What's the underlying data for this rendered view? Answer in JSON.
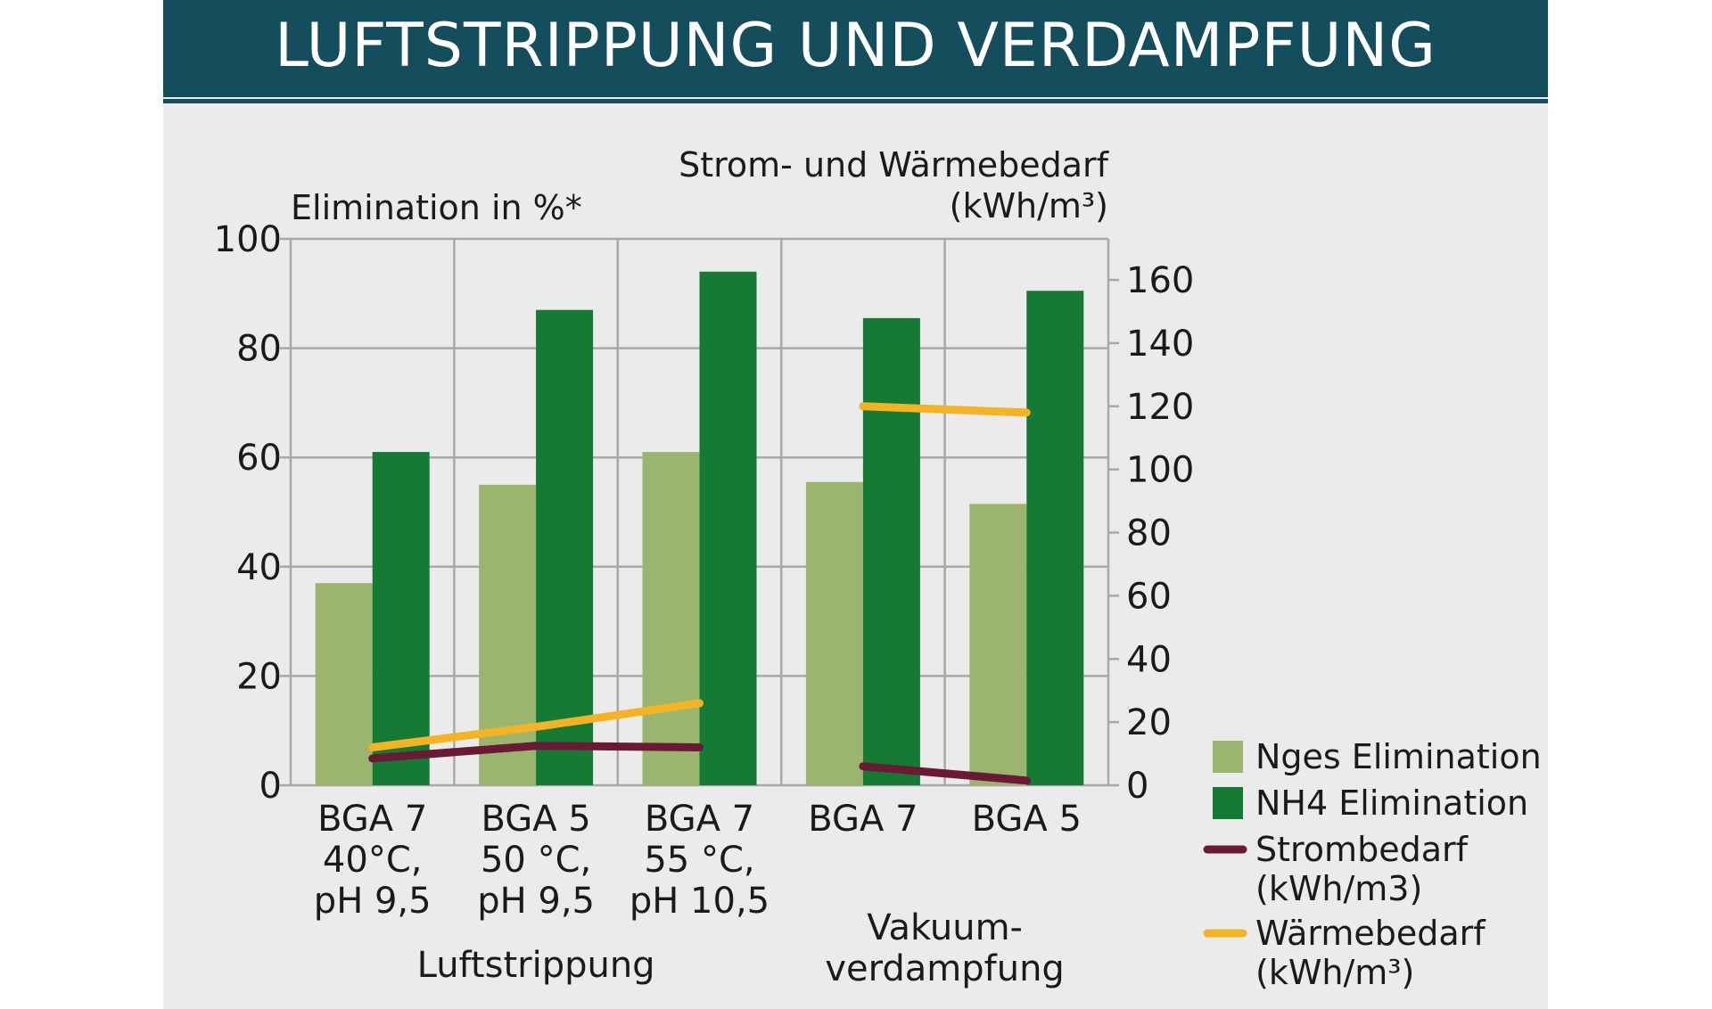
{
  "header": {
    "title": "LUFTSTRIPPUNG UND VERDAMPFUNG"
  },
  "colors": {
    "header_bg": "#144d5c",
    "nges": "#9cb56e",
    "nh4": "#147a34",
    "strom": "#6b1a35",
    "waerme": "#f3b325",
    "grid": "#a8a8a8"
  },
  "chart_data": {
    "type": "bar",
    "title": "LUFTSTRIPPUNG UND VERDAMPFUNG",
    "ylabel": "Elimination in %*",
    "y2label_line1": "Strom- und Wärmebedarf",
    "y2label_line2": "(kWh/m³)",
    "ylim": [
      0,
      100
    ],
    "y2lim": [
      0,
      173
    ],
    "yticks": [
      "0",
      "20",
      "40",
      "60",
      "80",
      "100"
    ],
    "y2ticks": [
      "0",
      "20",
      "40",
      "60",
      "80",
      "100",
      "120",
      "140",
      "160"
    ],
    "grid": true,
    "legend_position": "bottom-right",
    "categories": [
      [
        "BGA 7",
        "40°C,",
        "pH 9,5"
      ],
      [
        "BGA 5",
        "50 °C,",
        "pH 9,5"
      ],
      [
        "BGA 7",
        "55 °C,",
        "pH 10,5"
      ],
      [
        "BGA 7"
      ],
      [
        "BGA 5"
      ]
    ],
    "groups": [
      {
        "label": [
          "Luftstrippung"
        ],
        "categories": [
          0,
          1,
          2
        ]
      },
      {
        "label": [
          "Vakuum-",
          "verdampfung"
        ],
        "categories": [
          3,
          4
        ]
      }
    ],
    "series": [
      {
        "name": "Nges Elimination",
        "type": "bar",
        "axis": "left",
        "values": [
          37,
          55,
          61,
          55.5,
          51.5
        ]
      },
      {
        "name": "NH4 Elimination",
        "type": "bar",
        "axis": "left",
        "values": [
          61,
          87,
          94,
          85.5,
          90.5
        ]
      },
      {
        "name": "Strombedarf (kWh/m3)",
        "legend": [
          "Strombedarf",
          "(kWh/m3)"
        ],
        "type": "line",
        "axis": "right",
        "segments": [
          [
            0,
            1,
            2
          ],
          [
            3,
            4
          ]
        ],
        "values": [
          8.5,
          12.5,
          12,
          6,
          1.5
        ]
      },
      {
        "name": "Wärmebedarf (kWh/m³)",
        "legend": [
          "Wärmebedarf",
          "(kWh/m³)"
        ],
        "type": "line",
        "axis": "right",
        "segments": [
          [
            0,
            1,
            2
          ],
          [
            3,
            4
          ]
        ],
        "values": [
          12,
          18.5,
          26,
          120,
          118
        ]
      }
    ]
  }
}
